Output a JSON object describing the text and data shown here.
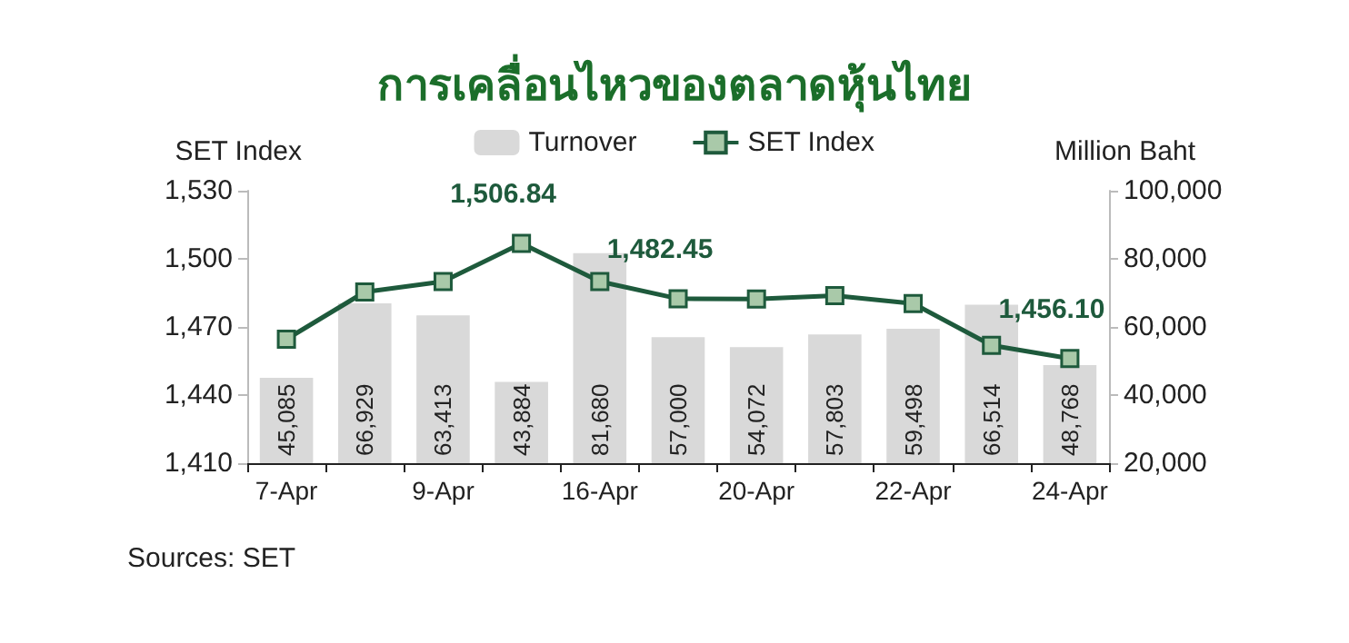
{
  "chart_data": {
    "type": "bar",
    "title": "การเคลื่อนไหวของตลาดหุ้นไทย",
    "ylabel": "SET Index",
    "y2label": "Million Baht",
    "categories": [
      "7-Apr",
      null,
      "9-Apr",
      null,
      "16-Apr",
      null,
      "20-Apr",
      null,
      "22-Apr",
      null,
      "24-Apr"
    ],
    "series": [
      {
        "name": "Turnover",
        "axis": "y2",
        "color": "#d9d9d9",
        "values": [
          45085,
          66929,
          63413,
          43884,
          81680,
          57000,
          54072,
          57803,
          59498,
          66514,
          48768
        ],
        "value_labels": [
          "45,085",
          "66,929",
          "63,413",
          "43,884",
          "81,680",
          "57,000",
          "54,072",
          "57,803",
          "59,498",
          "66,514",
          "48,768"
        ]
      },
      {
        "name": "SET Index",
        "type": "line",
        "color": "#1e5a3c",
        "marker": "square",
        "line_style": "solid",
        "values": [
          1464.6,
          1485.4,
          1490,
          1506.84,
          1490,
          1482.45,
          1482.3,
          1483.8,
          1480.3,
          1461.9,
          1456.1
        ],
        "value_labels": [
          null,
          null,
          null,
          "1,506.84",
          null,
          "1,482.45",
          null,
          null,
          null,
          null,
          "1,456.10"
        ]
      }
    ],
    "ylim": [
      1410,
      1530
    ],
    "yticks": [
      {
        "value": 1410,
        "label": "1,410"
      },
      {
        "value": 1440,
        "label": "1,440"
      },
      {
        "value": 1470,
        "label": "1,470"
      },
      {
        "value": 1500,
        "label": "1,500"
      },
      {
        "value": 1530,
        "label": "1,530"
      }
    ],
    "y2lim": [
      20000,
      100000
    ],
    "y2ticks": [
      {
        "value": 20000,
        "label": "20,000"
      },
      {
        "value": 40000,
        "label": "40,000"
      },
      {
        "value": 60000,
        "label": "60,000"
      },
      {
        "value": 80000,
        "label": "80,000"
      },
      {
        "value": 100000,
        "label": "100,000"
      }
    ],
    "legend": "top",
    "grid": false,
    "annotations": [
      "Sources: SET"
    ]
  }
}
